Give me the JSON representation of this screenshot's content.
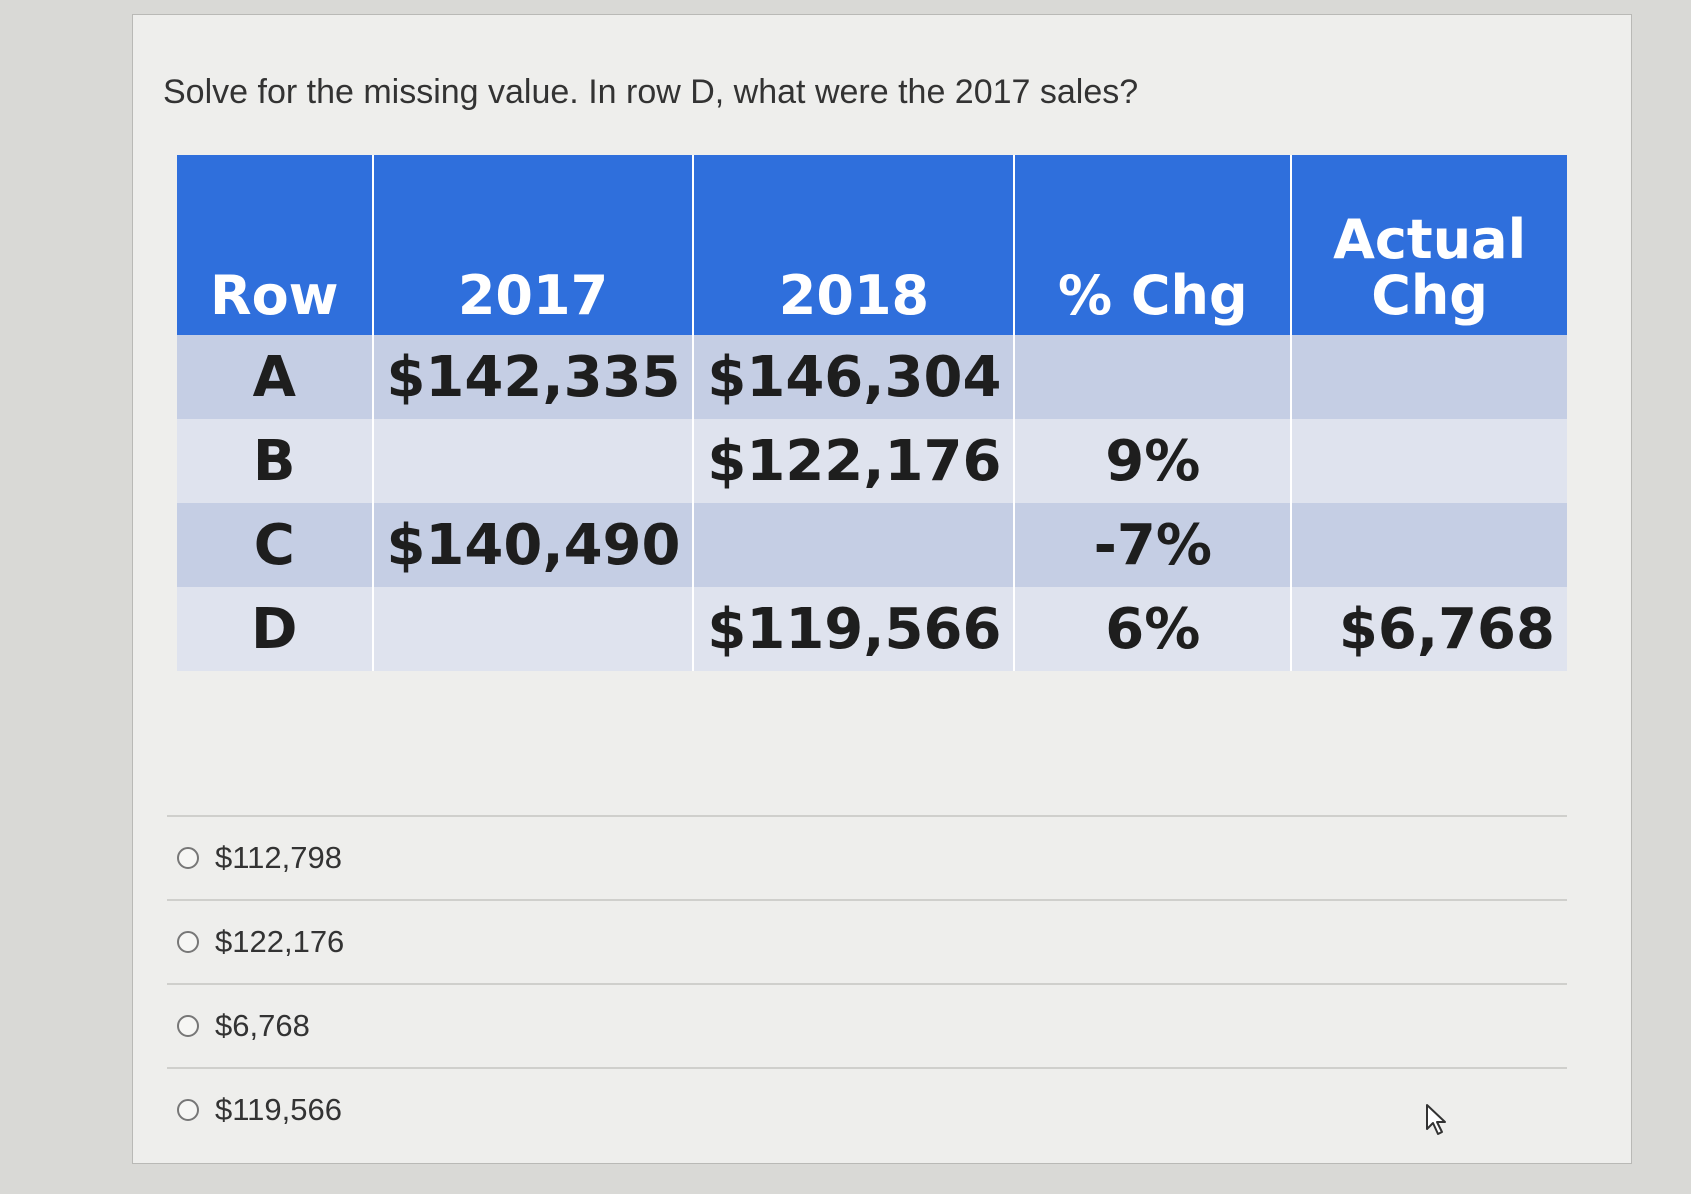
{
  "question": "Solve for the missing value. In row D, what were the 2017 sales?",
  "table": {
    "headers": [
      "Row",
      "2017",
      "2018",
      "% Chg",
      "Actual Chg"
    ],
    "rows": [
      {
        "row": "A",
        "y2017": "$142,335",
        "y2018": "$146,304",
        "pct": "",
        "actual": ""
      },
      {
        "row": "B",
        "y2017": "",
        "y2018": "$122,176",
        "pct": "9%",
        "actual": ""
      },
      {
        "row": "C",
        "y2017": "$140,490",
        "y2018": "",
        "pct": "-7%",
        "actual": ""
      },
      {
        "row": "D",
        "y2017": "",
        "y2018": "$119,566",
        "pct": "6%",
        "actual": "$6,768"
      }
    ]
  },
  "options": [
    {
      "label": "$112,798",
      "selected": false
    },
    {
      "label": "$122,176",
      "selected": false
    },
    {
      "label": "$6,768",
      "selected": false
    },
    {
      "label": "$119,566",
      "selected": false
    }
  ],
  "colors": {
    "header_blue": "#2f6fdc",
    "row_dark": "#c5cee4",
    "row_light": "#dfe3ee",
    "negative_red": "#e12f2f"
  }
}
